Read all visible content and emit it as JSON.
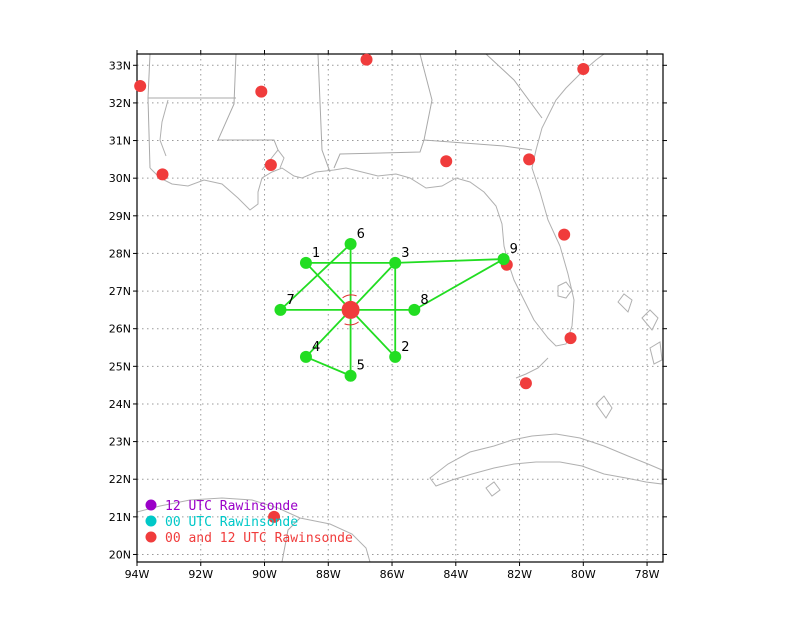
{
  "map": {
    "lon_range": [
      -94,
      -77.5
    ],
    "lat_range": [
      19.8,
      33.3
    ],
    "x_ticks": [
      {
        "lon": -94,
        "label": "94W"
      },
      {
        "lon": -92,
        "label": "92W"
      },
      {
        "lon": -90,
        "label": "90W"
      },
      {
        "lon": -88,
        "label": "88W"
      },
      {
        "lon": -86,
        "label": "86W"
      },
      {
        "lon": -84,
        "label": "84W"
      },
      {
        "lon": -82,
        "label": "82W"
      },
      {
        "lon": -80,
        "label": "80W"
      },
      {
        "lon": -78,
        "label": "78W"
      }
    ],
    "y_ticks": [
      {
        "lat": 20,
        "label": "20N"
      },
      {
        "lat": 21,
        "label": "21N"
      },
      {
        "lat": 22,
        "label": "22N"
      },
      {
        "lat": 23,
        "label": "23N"
      },
      {
        "lat": 24,
        "label": "24N"
      },
      {
        "lat": 25,
        "label": "25N"
      },
      {
        "lat": 26,
        "label": "26N"
      },
      {
        "lat": 27,
        "label": "27N"
      },
      {
        "lat": 28,
        "label": "28N"
      },
      {
        "lat": 29,
        "label": "29N"
      },
      {
        "lat": 30,
        "label": "30N"
      },
      {
        "lat": 31,
        "label": "31N"
      },
      {
        "lat": 32,
        "label": "32N"
      },
      {
        "lat": 33,
        "label": "33N"
      }
    ],
    "grid": true
  },
  "colors": {
    "rawinsonde": "#f03c3c",
    "network": "#22dd22",
    "legend_12utc": "#9a00c8",
    "legend_00utc": "#00c8c8",
    "legend_both": "#f03c3c",
    "center_arc": "#e03030"
  },
  "center": {
    "lon": -87.3,
    "lat": 26.5
  },
  "network_points": [
    {
      "id": "1",
      "lon": -88.7,
      "lat": 27.75
    },
    {
      "id": "2",
      "lon": -85.9,
      "lat": 25.25
    },
    {
      "id": "3",
      "lon": -85.9,
      "lat": 27.75
    },
    {
      "id": "4",
      "lon": -88.7,
      "lat": 25.25
    },
    {
      "id": "5",
      "lon": -87.3,
      "lat": 24.75
    },
    {
      "id": "6",
      "lon": -87.3,
      "lat": 28.25
    },
    {
      "id": "7",
      "lon": -89.5,
      "lat": 26.5
    },
    {
      "id": "8",
      "lon": -85.3,
      "lat": 26.5
    },
    {
      "id": "9",
      "lon": -82.5,
      "lat": 27.85
    }
  ],
  "network_links": [
    [
      "1",
      "3"
    ],
    [
      "3",
      "9"
    ],
    [
      "8",
      "9"
    ],
    [
      "3",
      "2"
    ],
    [
      "4",
      "5"
    ],
    [
      "7",
      "8"
    ],
    [
      "1",
      "2"
    ],
    [
      "6",
      "5"
    ],
    [
      "3",
      "4"
    ],
    [
      "6",
      "7"
    ]
  ],
  "rawinsonde_stations": [
    {
      "lon": -93.9,
      "lat": 32.45
    },
    {
      "lon": -90.1,
      "lat": 32.3
    },
    {
      "lon": -86.8,
      "lat": 33.15
    },
    {
      "lon": -80.0,
      "lat": 32.9
    },
    {
      "lon": -93.2,
      "lat": 30.1
    },
    {
      "lon": -89.8,
      "lat": 30.35
    },
    {
      "lon": -84.3,
      "lat": 30.45
    },
    {
      "lon": -81.7,
      "lat": 30.5
    },
    {
      "lon": -80.6,
      "lat": 28.5
    },
    {
      "lon": -82.4,
      "lat": 27.7
    },
    {
      "lon": -80.4,
      "lat": 25.75
    },
    {
      "lon": -81.8,
      "lat": 24.55
    },
    {
      "lon": -89.7,
      "lat": 21.0
    }
  ],
  "legend": [
    {
      "label": "12 UTC Rawinsonde",
      "color_key": "legend_12utc"
    },
    {
      "label": "00 UTC Rawinsonde",
      "color_key": "legend_00utc"
    },
    {
      "label": "00 and 12 UTC Rawinsonde",
      "color_key": "legend_both"
    }
  ]
}
